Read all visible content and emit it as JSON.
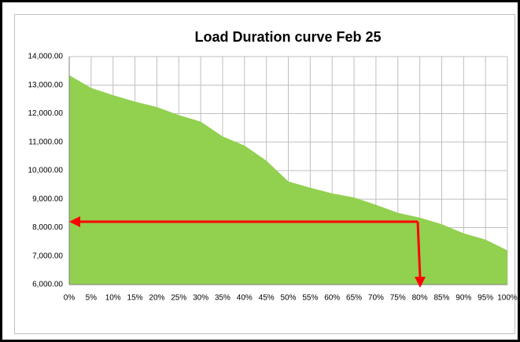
{
  "chart_data": {
    "type": "area",
    "title": "Load Duration curve  Feb 25",
    "categories": [
      "0%",
      "5%",
      "10%",
      "15%",
      "20%",
      "25%",
      "30%",
      "35%",
      "40%",
      "45%",
      "50%",
      "55%",
      "60%",
      "65%",
      "70%",
      "75%",
      "80%",
      "85%",
      "90%",
      "95%",
      "100%"
    ],
    "values": [
      13350,
      12900,
      12650,
      12420,
      12230,
      11950,
      11720,
      11200,
      10880,
      10350,
      9620,
      9400,
      9200,
      9060,
      8800,
      8520,
      8350,
      8120,
      7800,
      7580,
      7200
    ],
    "color": "#92d050",
    "ylim": [
      6000,
      14000
    ],
    "yticks": [
      {
        "value": 6000,
        "label": "6,000.00"
      },
      {
        "value": 7000,
        "label": "7,000.00"
      },
      {
        "value": 8000,
        "label": "8,000.00"
      },
      {
        "value": 9000,
        "label": "9,000.00"
      },
      {
        "value": 10000,
        "label": "10,000.00"
      },
      {
        "value": 11000,
        "label": "11,000.00"
      },
      {
        "value": 12000,
        "label": "12,000.00"
      },
      {
        "value": 13000,
        "label": "13,000.00"
      },
      {
        "value": 14000,
        "label": "14,000.00"
      }
    ],
    "grid": true
  }
}
